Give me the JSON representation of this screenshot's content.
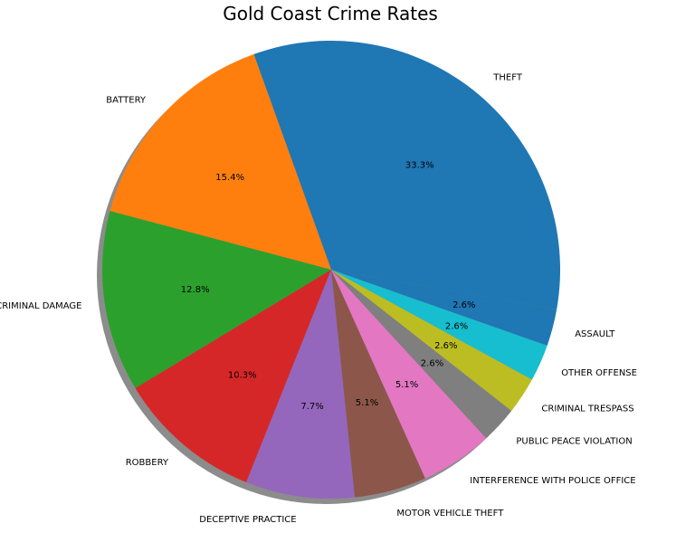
{
  "chart_data": {
    "type": "pie",
    "title": "Gold Coast Crime Rates",
    "shadow": true,
    "start_angle_deg": -10,
    "counterclockwise": true,
    "slices": [
      {
        "label": "THEFT",
        "value": 33.3,
        "pct_label": "33.3%",
        "color": "#1f77b4"
      },
      {
        "label": "BATTERY",
        "value": 15.4,
        "pct_label": "15.4%",
        "color": "#ff7f0e"
      },
      {
        "label": "CRIMINAL DAMAGE",
        "value": 12.8,
        "pct_label": "12.8%",
        "color": "#2ca02c"
      },
      {
        "label": "ROBBERY",
        "value": 10.3,
        "pct_label": "10.3%",
        "color": "#d62728"
      },
      {
        "label": "DECEPTIVE PRACTICE",
        "value": 7.7,
        "pct_label": "7.7%",
        "color": "#9467bd"
      },
      {
        "label": "MOTOR VEHICLE THEFT",
        "value": 5.1,
        "pct_label": "5.1%",
        "color": "#8c564b"
      },
      {
        "label": "INTERFERENCE WITH POLICE OFFICE",
        "value": 5.1,
        "pct_label": "5.1%",
        "color": "#e377c2"
      },
      {
        "label": "PUBLIC PEACE VIOLATION",
        "value": 2.6,
        "pct_label": "2.6%",
        "color": "#7f7f7f"
      },
      {
        "label": "CRIMINAL TRESPASS",
        "value": 2.6,
        "pct_label": "2.6%",
        "color": "#bcbd22"
      },
      {
        "label": "OTHER OFFENSE",
        "value": 2.6,
        "pct_label": "2.6%",
        "color": "#17becf"
      },
      {
        "label": "ASSAULT",
        "value": 2.6,
        "pct_label": "2.6%",
        "color": "#1f77b4"
      }
    ]
  }
}
